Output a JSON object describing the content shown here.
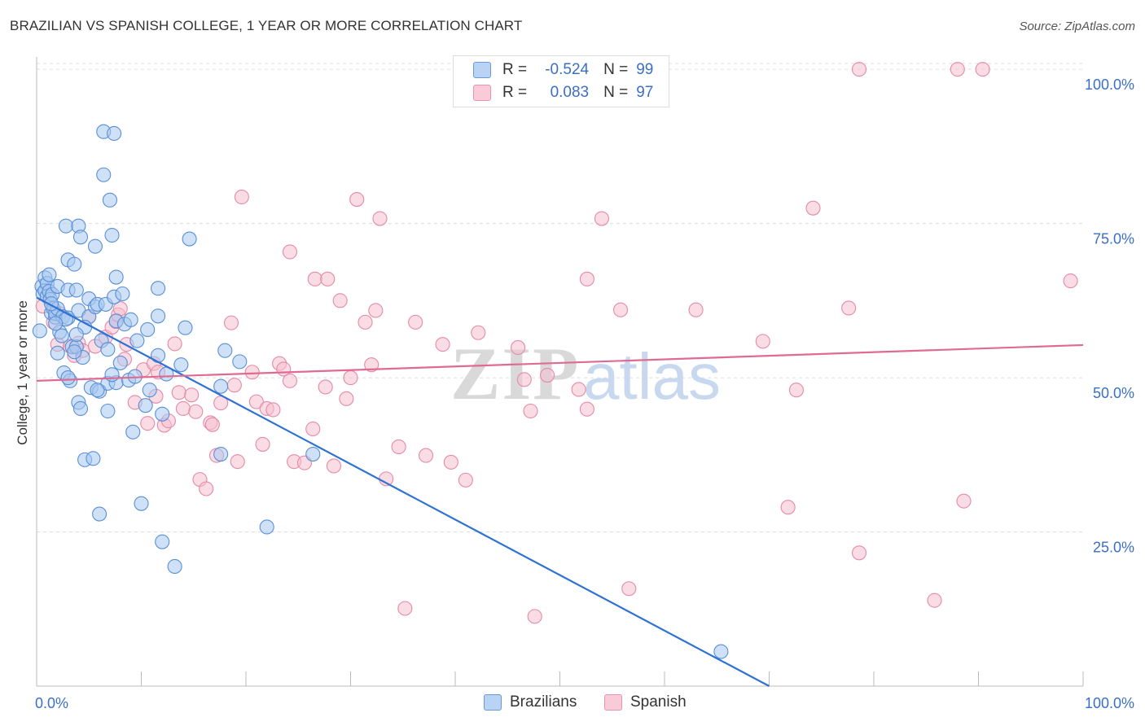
{
  "title": "BRAZILIAN VS SPANISH COLLEGE, 1 YEAR OR MORE CORRELATION CHART",
  "source": "Source: ZipAtlas.com",
  "watermark": {
    "zip": "ZIP",
    "atlas": "atlas"
  },
  "legend": {
    "brazilians": {
      "r_label": "R =",
      "r_value": "-0.524",
      "n_label": "N =",
      "n_value": "99"
    },
    "spanish": {
      "r_label": "R =",
      "r_value": "0.083",
      "n_label": "N =",
      "n_value": "97"
    }
  },
  "colors": {
    "blue_fill": "#a8c8f0",
    "blue_stroke": "#5a8fd6",
    "blue_line": "#2f72d4",
    "pink_fill": "#f6bfd0",
    "pink_stroke": "#e58aa8",
    "pink_line": "#e06b92",
    "grid": "#dddddd",
    "tick_label": "#3b6fc7"
  },
  "chart_data": {
    "type": "scatter",
    "xlabel": "",
    "ylabel": "College, 1 year or more",
    "xlim": [
      0,
      100
    ],
    "ylim": [
      0,
      102
    ],
    "x_tick_labels": [
      "0.0%",
      "100.0%"
    ],
    "y_ticks": [
      25,
      50,
      75,
      100
    ],
    "y_tick_labels": [
      "25.0%",
      "50.0%",
      "75.0%",
      "100.0%"
    ],
    "series": [
      {
        "name": "Brazilians",
        "points": [
          [
            0.5,
            64.8
          ],
          [
            0.6,
            63.6
          ],
          [
            0.8,
            66.2
          ],
          [
            0.8,
            64.1
          ],
          [
            1.0,
            65.3
          ],
          [
            1.0,
            63.2
          ],
          [
            1.2,
            66.7
          ],
          [
            1.2,
            64.0
          ],
          [
            1.3,
            62.7
          ],
          [
            1.4,
            60.5
          ],
          [
            1.5,
            63.5
          ],
          [
            1.6,
            61.2
          ],
          [
            1.8,
            59.8
          ],
          [
            1.8,
            60.4
          ],
          [
            2.0,
            64.8
          ],
          [
            2.0,
            61.2
          ],
          [
            2.2,
            57.4
          ],
          [
            2.4,
            56.8
          ],
          [
            2.5,
            59.9
          ],
          [
            2.6,
            50.8
          ],
          [
            2.8,
            74.6
          ],
          [
            3.0,
            69.1
          ],
          [
            3.0,
            64.2
          ],
          [
            3.0,
            59.7
          ],
          [
            3.2,
            49.5
          ],
          [
            3.4,
            55.0
          ],
          [
            3.6,
            68.4
          ],
          [
            3.8,
            64.2
          ],
          [
            3.8,
            55.0
          ],
          [
            4.0,
            74.6
          ],
          [
            4.0,
            60.9
          ],
          [
            4.2,
            72.8
          ],
          [
            4.0,
            46.0
          ],
          [
            4.2,
            45.0
          ],
          [
            4.4,
            53.3
          ],
          [
            4.6,
            36.7
          ],
          [
            5.0,
            59.9
          ],
          [
            5.0,
            62.8
          ],
          [
            5.2,
            48.4
          ],
          [
            5.4,
            36.9
          ],
          [
            5.6,
            71.3
          ],
          [
            5.6,
            61.5
          ],
          [
            5.8,
            61.9
          ],
          [
            6.0,
            47.8
          ],
          [
            6.0,
            27.9
          ],
          [
            6.4,
            89.9
          ],
          [
            6.4,
            82.9
          ],
          [
            6.6,
            61.9
          ],
          [
            6.8,
            49.1
          ],
          [
            6.8,
            44.6
          ],
          [
            7.0,
            78.8
          ],
          [
            7.2,
            73.1
          ],
          [
            7.4,
            89.6
          ],
          [
            7.4,
            63.1
          ],
          [
            7.6,
            59.2
          ],
          [
            7.6,
            49.2
          ],
          [
            7.6,
            66.3
          ],
          [
            8.2,
            63.6
          ],
          [
            8.4,
            58.7
          ],
          [
            8.8,
            49.6
          ],
          [
            9.0,
            59.4
          ],
          [
            9.2,
            41.2
          ],
          [
            9.6,
            56.0
          ],
          [
            10.0,
            29.6
          ],
          [
            10.4,
            45.5
          ],
          [
            10.6,
            57.8
          ],
          [
            11.6,
            64.5
          ],
          [
            11.6,
            60.0
          ],
          [
            11.6,
            53.6
          ],
          [
            12.0,
            23.4
          ],
          [
            12.0,
            44.1
          ],
          [
            13.2,
            19.4
          ],
          [
            13.8,
            52.1
          ],
          [
            14.2,
            58.1
          ],
          [
            14.6,
            72.5
          ],
          [
            17.6,
            37.6
          ],
          [
            17.6,
            48.6
          ],
          [
            18.0,
            54.4
          ],
          [
            19.4,
            52.6
          ],
          [
            22.0,
            25.8
          ],
          [
            26.4,
            37.6
          ],
          [
            65.4,
            5.6
          ],
          [
            7.2,
            50.5
          ],
          [
            2.0,
            54.0
          ],
          [
            3.0,
            50.0
          ],
          [
            3.6,
            54.2
          ],
          [
            5.8,
            48.0
          ],
          [
            6.2,
            56.0
          ],
          [
            1.4,
            62.0
          ],
          [
            2.8,
            59.5
          ],
          [
            4.6,
            58.2
          ],
          [
            9.4,
            50.2
          ],
          [
            1.8,
            58.8
          ],
          [
            3.8,
            57.0
          ],
          [
            6.8,
            54.6
          ],
          [
            8.0,
            52.4
          ],
          [
            10.8,
            48.0
          ],
          [
            12.4,
            50.6
          ],
          [
            0.3,
            57.6
          ]
        ]
      },
      {
        "name": "Spanish",
        "points": [
          [
            0.6,
            61.6
          ],
          [
            1.6,
            59.0
          ],
          [
            2.0,
            55.4
          ],
          [
            2.2,
            60.4
          ],
          [
            3.2,
            55.1
          ],
          [
            3.6,
            53.6
          ],
          [
            4.0,
            55.6
          ],
          [
            4.4,
            54.4
          ],
          [
            5.0,
            59.9
          ],
          [
            5.6,
            55.1
          ],
          [
            6.6,
            56.6
          ],
          [
            7.2,
            58.2
          ],
          [
            7.6,
            59.1
          ],
          [
            7.8,
            60.2
          ],
          [
            8.0,
            61.2
          ],
          [
            8.4,
            53.0
          ],
          [
            9.4,
            46.0
          ],
          [
            10.2,
            51.3
          ],
          [
            10.6,
            42.6
          ],
          [
            11.2,
            52.3
          ],
          [
            11.6,
            50.9
          ],
          [
            12.2,
            42.3
          ],
          [
            12.6,
            43.0
          ],
          [
            13.2,
            55.5
          ],
          [
            13.6,
            47.6
          ],
          [
            14.0,
            45.0
          ],
          [
            14.8,
            47.2
          ],
          [
            15.2,
            44.5
          ],
          [
            15.6,
            33.5
          ],
          [
            16.2,
            32.0
          ],
          [
            16.6,
            42.7
          ],
          [
            17.2,
            37.4
          ],
          [
            17.6,
            45.9
          ],
          [
            18.6,
            58.9
          ],
          [
            18.9,
            48.8
          ],
          [
            19.2,
            36.4
          ],
          [
            19.6,
            79.3
          ],
          [
            20.6,
            50.9
          ],
          [
            21.0,
            46.1
          ],
          [
            21.6,
            39.2
          ],
          [
            22.0,
            45.0
          ],
          [
            22.6,
            44.8
          ],
          [
            23.2,
            52.3
          ],
          [
            23.6,
            51.4
          ],
          [
            24.2,
            49.5
          ],
          [
            24.2,
            70.4
          ],
          [
            24.6,
            36.4
          ],
          [
            25.6,
            36.2
          ],
          [
            26.4,
            41.7
          ],
          [
            26.6,
            66.0
          ],
          [
            27.6,
            48.5
          ],
          [
            27.8,
            66.0
          ],
          [
            28.4,
            35.7
          ],
          [
            29.0,
            62.5
          ],
          [
            29.6,
            46.6
          ],
          [
            30.0,
            50.0
          ],
          [
            30.6,
            78.9
          ],
          [
            31.4,
            59.0
          ],
          [
            32.0,
            52.1
          ],
          [
            32.4,
            60.9
          ],
          [
            32.8,
            75.8
          ],
          [
            33.4,
            33.6
          ],
          [
            34.6,
            38.8
          ],
          [
            36.2,
            59.0
          ],
          [
            37.2,
            37.4
          ],
          [
            38.8,
            55.4
          ],
          [
            39.6,
            36.3
          ],
          [
            41.0,
            33.4
          ],
          [
            42.2,
            57.3
          ],
          [
            46.0,
            54.9
          ],
          [
            46.6,
            49.7
          ],
          [
            47.6,
            11.3
          ],
          [
            47.2,
            44.6
          ],
          [
            48.8,
            50.4
          ],
          [
            51.8,
            48.1
          ],
          [
            52.6,
            44.9
          ],
          [
            52.6,
            66.0
          ],
          [
            54.0,
            75.8
          ],
          [
            55.8,
            61.0
          ],
          [
            56.6,
            15.8
          ],
          [
            63.0,
            61.0
          ],
          [
            69.4,
            55.9
          ],
          [
            71.8,
            29.0
          ],
          [
            72.6,
            48.0
          ],
          [
            74.2,
            77.5
          ],
          [
            77.6,
            61.3
          ],
          [
            78.6,
            100.0
          ],
          [
            78.6,
            21.6
          ],
          [
            88.0,
            100.0
          ],
          [
            88.6,
            30.0
          ],
          [
            90.4,
            100.0
          ],
          [
            98.8,
            65.7
          ],
          [
            85.8,
            13.9
          ],
          [
            35.2,
            12.6
          ],
          [
            11.4,
            47.0
          ],
          [
            8.6,
            55.4
          ],
          [
            16.8,
            42.4
          ]
        ]
      }
    ],
    "trendlines": [
      {
        "series": "Brazilians",
        "x": [
          0,
          70
        ],
        "y": [
          63.0,
          0
        ]
      },
      {
        "series": "Spanish",
        "x": [
          0,
          100
        ],
        "y": [
          49.5,
          55.3
        ]
      }
    ]
  },
  "bottom_legend": {
    "brazilians": "Brazilians",
    "spanish": "Spanish"
  }
}
